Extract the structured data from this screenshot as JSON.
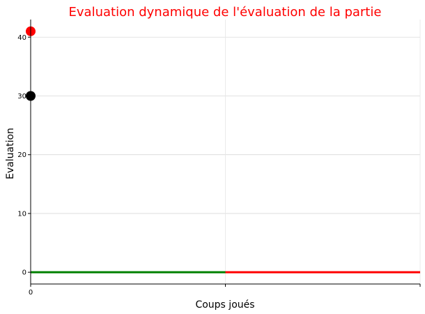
{
  "chart_data": {
    "type": "line",
    "title": "Evaluation dynamique de l'évaluation de la partie",
    "title_color": "#ff0000",
    "xlabel": "Coups joués",
    "ylabel": "Evaluation",
    "xlim": [
      0,
      2
    ],
    "ylim": [
      -2,
      43
    ],
    "x_ticks": [
      0,
      1,
      2
    ],
    "x_tick_labels": [
      "0",
      "",
      ""
    ],
    "y_ticks": [
      0,
      10,
      20,
      30,
      40
    ],
    "y_tick_labels": [
      "0",
      "10",
      "20",
      "30",
      "40"
    ],
    "grid": true,
    "segments": [
      {
        "x": [
          0,
          1
        ],
        "y": [
          0,
          0
        ],
        "color": "#008000"
      },
      {
        "x": [
          1,
          2
        ],
        "y": [
          0,
          0
        ],
        "color": "#ff0000"
      }
    ],
    "points": [
      {
        "x": 0,
        "y": 41,
        "color": "#ff0000"
      },
      {
        "x": 0,
        "y": 30,
        "color": "#000000"
      }
    ]
  }
}
